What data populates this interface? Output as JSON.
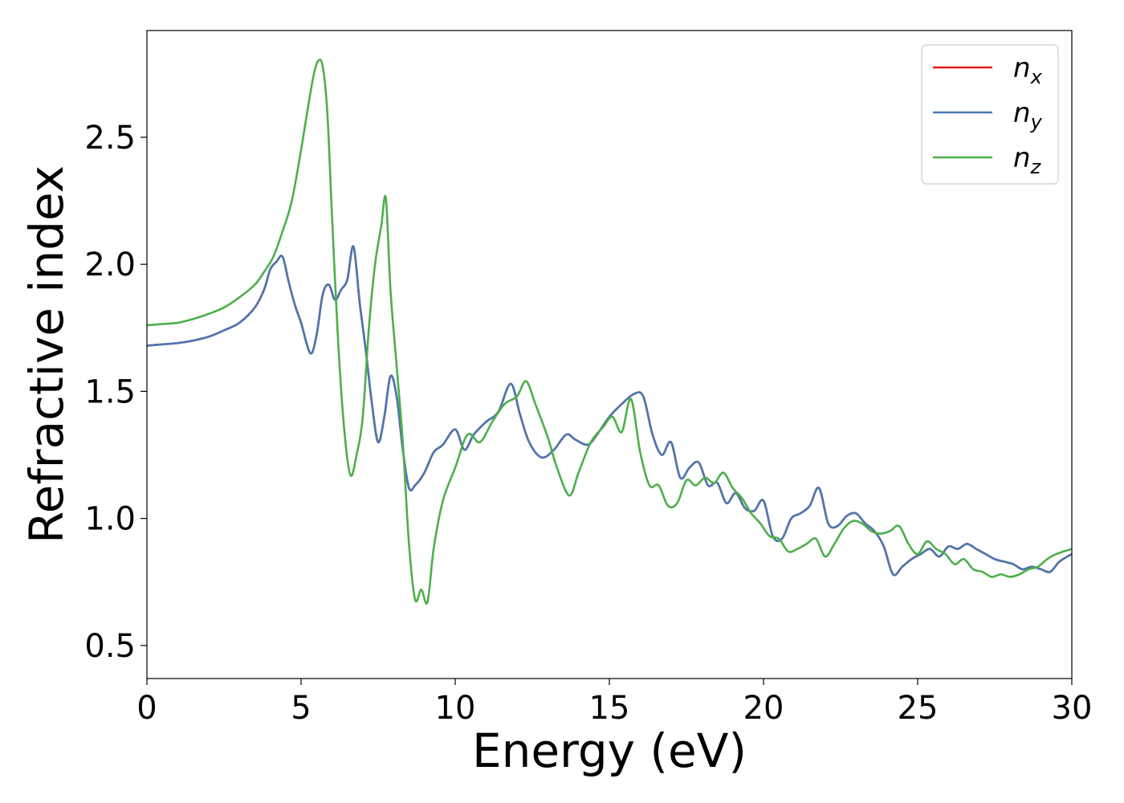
{
  "chart_data": {
    "type": "line",
    "xlabel": "Energy (eV)",
    "ylabel": "Refractive index",
    "xlim": [
      0,
      30
    ],
    "ylim": [
      0.37,
      2.92
    ],
    "xticks": [
      0,
      5,
      10,
      15,
      20,
      25,
      30
    ],
    "yticks": [
      0.5,
      1.0,
      1.5,
      2.0,
      2.5
    ],
    "xtick_labels": [
      "0",
      "5",
      "10",
      "15",
      "20",
      "25",
      "30"
    ],
    "ytick_labels": [
      "0.5",
      "1.0",
      "1.5",
      "2.0",
      "2.5"
    ],
    "grid": false,
    "legend_position": "top-right",
    "series": [
      {
        "name": "n",
        "subscript": "x",
        "color": "#e41a1c",
        "x": [
          0,
          0.5,
          1,
          1.5,
          2,
          2.5,
          3,
          3.5,
          3.8,
          4.0,
          4.2,
          4.4,
          4.6,
          4.8,
          5.0,
          5.3,
          5.5,
          5.7,
          5.9,
          6.1,
          6.3,
          6.5,
          6.7,
          6.9,
          7.1,
          7.3,
          7.5,
          7.7,
          7.9,
          8.1,
          8.3,
          8.5,
          8.7,
          9.0,
          9.3,
          9.6,
          10.0,
          10.3,
          10.6,
          11.0,
          11.4,
          11.8,
          12.1,
          12.4,
          12.8,
          13.2,
          13.6,
          13.9,
          14.3,
          14.6,
          15.0,
          15.4,
          15.8,
          16.1,
          16.4,
          16.7,
          17.0,
          17.3,
          17.6,
          17.9,
          18.2,
          18.5,
          18.8,
          19.1,
          19.4,
          19.7,
          20.0,
          20.3,
          20.6,
          20.9,
          21.2,
          21.5,
          21.8,
          22.1,
          22.4,
          22.7,
          23.0,
          23.3,
          23.6,
          23.9,
          24.2,
          24.5,
          24.8,
          25.1,
          25.4,
          25.7,
          26.0,
          26.3,
          26.6,
          26.9,
          27.2,
          27.5,
          27.8,
          28.1,
          28.4,
          28.7,
          29.0,
          29.3,
          29.6,
          30.0
        ],
        "y": [
          1.68,
          1.685,
          1.69,
          1.7,
          1.715,
          1.74,
          1.77,
          1.83,
          1.9,
          1.98,
          2.01,
          2.03,
          1.93,
          1.84,
          1.77,
          1.65,
          1.72,
          1.88,
          1.92,
          1.86,
          1.9,
          1.94,
          2.07,
          1.85,
          1.66,
          1.45,
          1.3,
          1.4,
          1.56,
          1.48,
          1.27,
          1.12,
          1.13,
          1.18,
          1.26,
          1.29,
          1.35,
          1.27,
          1.33,
          1.38,
          1.42,
          1.53,
          1.41,
          1.3,
          1.24,
          1.27,
          1.33,
          1.31,
          1.29,
          1.33,
          1.4,
          1.45,
          1.49,
          1.48,
          1.33,
          1.25,
          1.3,
          1.16,
          1.2,
          1.22,
          1.13,
          1.14,
          1.06,
          1.1,
          1.04,
          1.03,
          1.07,
          0.93,
          0.92,
          1.0,
          1.02,
          1.05,
          1.12,
          0.98,
          0.97,
          1.01,
          1.02,
          0.98,
          0.95,
          0.89,
          0.78,
          0.81,
          0.84,
          0.86,
          0.88,
          0.85,
          0.89,
          0.88,
          0.9,
          0.88,
          0.86,
          0.84,
          0.83,
          0.82,
          0.8,
          0.81,
          0.8,
          0.79,
          0.83,
          0.86
        ]
      },
      {
        "name": "n",
        "subscript": "y",
        "color": "#4a78b0",
        "x": [
          0,
          0.5,
          1,
          1.5,
          2,
          2.5,
          3,
          3.5,
          3.8,
          4.0,
          4.2,
          4.4,
          4.6,
          4.8,
          5.0,
          5.3,
          5.5,
          5.7,
          5.9,
          6.1,
          6.3,
          6.5,
          6.7,
          6.9,
          7.1,
          7.3,
          7.5,
          7.7,
          7.9,
          8.1,
          8.3,
          8.5,
          8.7,
          9.0,
          9.3,
          9.6,
          10.0,
          10.3,
          10.6,
          11.0,
          11.4,
          11.8,
          12.1,
          12.4,
          12.8,
          13.2,
          13.6,
          13.9,
          14.3,
          14.6,
          15.0,
          15.4,
          15.8,
          16.1,
          16.4,
          16.7,
          17.0,
          17.3,
          17.6,
          17.9,
          18.2,
          18.5,
          18.8,
          19.1,
          19.4,
          19.7,
          20.0,
          20.3,
          20.6,
          20.9,
          21.2,
          21.5,
          21.8,
          22.1,
          22.4,
          22.7,
          23.0,
          23.3,
          23.6,
          23.9,
          24.2,
          24.5,
          24.8,
          25.1,
          25.4,
          25.7,
          26.0,
          26.3,
          26.6,
          26.9,
          27.2,
          27.5,
          27.8,
          28.1,
          28.4,
          28.7,
          29.0,
          29.3,
          29.6,
          30.0
        ],
        "y": [
          1.68,
          1.685,
          1.69,
          1.7,
          1.715,
          1.74,
          1.77,
          1.83,
          1.9,
          1.98,
          2.01,
          2.03,
          1.93,
          1.84,
          1.77,
          1.65,
          1.72,
          1.88,
          1.92,
          1.86,
          1.9,
          1.94,
          2.07,
          1.85,
          1.66,
          1.45,
          1.3,
          1.4,
          1.56,
          1.48,
          1.27,
          1.12,
          1.13,
          1.18,
          1.26,
          1.29,
          1.35,
          1.27,
          1.33,
          1.38,
          1.42,
          1.53,
          1.41,
          1.3,
          1.24,
          1.27,
          1.33,
          1.31,
          1.29,
          1.33,
          1.4,
          1.45,
          1.49,
          1.48,
          1.33,
          1.25,
          1.3,
          1.16,
          1.2,
          1.22,
          1.13,
          1.14,
          1.06,
          1.1,
          1.04,
          1.03,
          1.07,
          0.93,
          0.92,
          1.0,
          1.02,
          1.05,
          1.12,
          0.98,
          0.97,
          1.01,
          1.02,
          0.98,
          0.95,
          0.89,
          0.78,
          0.81,
          0.84,
          0.86,
          0.88,
          0.85,
          0.89,
          0.88,
          0.9,
          0.88,
          0.86,
          0.84,
          0.83,
          0.82,
          0.8,
          0.81,
          0.8,
          0.79,
          0.83,
          0.86
        ]
      },
      {
        "name": "n",
        "subscript": "z",
        "color": "#4daf4a",
        "x": [
          0,
          0.5,
          1,
          1.5,
          2,
          2.5,
          3,
          3.5,
          3.8,
          4.1,
          4.4,
          4.7,
          5.0,
          5.2,
          5.4,
          5.55,
          5.7,
          5.85,
          6.0,
          6.2,
          6.4,
          6.6,
          6.8,
          7.0,
          7.2,
          7.4,
          7.6,
          7.75,
          7.9,
          8.1,
          8.3,
          8.5,
          8.7,
          8.9,
          9.1,
          9.3,
          9.6,
          10.0,
          10.4,
          10.8,
          11.2,
          11.6,
          12.0,
          12.3,
          12.6,
          13.0,
          13.3,
          13.7,
          14.0,
          14.4,
          14.8,
          15.1,
          15.4,
          15.7,
          16.0,
          16.3,
          16.6,
          16.9,
          17.2,
          17.5,
          17.8,
          18.1,
          18.4,
          18.7,
          19.0,
          19.3,
          19.6,
          19.9,
          20.2,
          20.5,
          20.8,
          21.1,
          21.4,
          21.7,
          22.0,
          22.3,
          22.6,
          22.9,
          23.2,
          23.5,
          23.8,
          24.1,
          24.4,
          24.7,
          25.0,
          25.3,
          25.6,
          25.9,
          26.2,
          26.5,
          26.8,
          27.1,
          27.4,
          27.7,
          28.0,
          28.3,
          28.6,
          28.9,
          29.2,
          29.5,
          30.0
        ],
        "y": [
          1.76,
          1.765,
          1.77,
          1.785,
          1.805,
          1.83,
          1.87,
          1.92,
          1.97,
          2.03,
          2.13,
          2.25,
          2.45,
          2.6,
          2.74,
          2.8,
          2.78,
          2.6,
          2.2,
          1.7,
          1.35,
          1.17,
          1.25,
          1.4,
          1.75,
          2.0,
          2.15,
          2.26,
          1.9,
          1.6,
          1.3,
          0.9,
          0.68,
          0.72,
          0.67,
          0.88,
          1.07,
          1.2,
          1.33,
          1.3,
          1.38,
          1.45,
          1.48,
          1.54,
          1.45,
          1.32,
          1.2,
          1.09,
          1.18,
          1.3,
          1.36,
          1.4,
          1.34,
          1.47,
          1.26,
          1.13,
          1.13,
          1.05,
          1.06,
          1.15,
          1.13,
          1.16,
          1.14,
          1.18,
          1.12,
          1.08,
          1.02,
          0.98,
          0.93,
          0.92,
          0.87,
          0.88,
          0.9,
          0.92,
          0.85,
          0.9,
          0.96,
          0.99,
          0.98,
          0.95,
          0.94,
          0.95,
          0.97,
          0.9,
          0.86,
          0.91,
          0.88,
          0.86,
          0.82,
          0.84,
          0.8,
          0.79,
          0.77,
          0.78,
          0.77,
          0.78,
          0.8,
          0.81,
          0.84,
          0.86,
          0.88
        ]
      }
    ]
  },
  "colors": {
    "n_x": "#e41a1c",
    "n_y": "#4a78b0",
    "n_z": "#4daf4a"
  }
}
